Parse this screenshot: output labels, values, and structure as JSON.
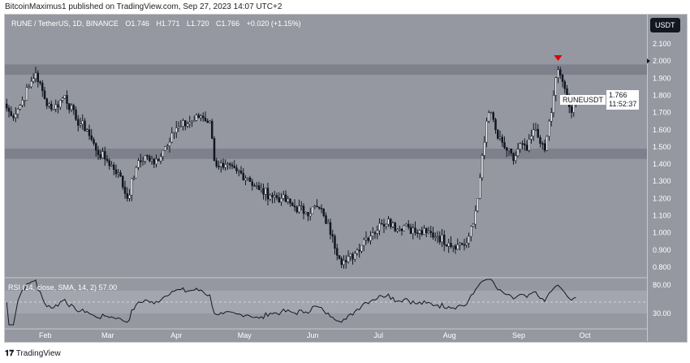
{
  "header": {
    "published": "BitcoinMaximus1 published on TradingView.com, Sep 27, 2023 14:07 UTC+2"
  },
  "legend": {
    "symbol": "RUNE / TetherUS, 1D, BINANCE",
    "open": "O1.746",
    "high": "H1.771",
    "low": "L1.720",
    "close": "C1.766",
    "change": "+0.020 (+1.15%)"
  },
  "price_axis": {
    "currency": "USDT",
    "ticks": [
      "2.100",
      "2.000",
      "1.900",
      "1.800",
      "1.700",
      "1.600",
      "1.500",
      "1.400",
      "1.300",
      "1.200",
      "1.100",
      "1.000",
      "0.900",
      "0.800"
    ],
    "symbol_label": "RUNEUSDT",
    "last_price": "1.766",
    "countdown": "11:52:37"
  },
  "time_axis": {
    "ticks": [
      "Feb",
      "Mar",
      "Apr",
      "May",
      "Jun",
      "Jul",
      "Aug",
      "Sep",
      "Oct"
    ]
  },
  "rsi": {
    "label": "RSI (14, close, SMA, 14, 2)",
    "value": "57.00",
    "ticks": [
      "80.00",
      "30.00"
    ]
  },
  "footer": {
    "brand": "TradingView"
  },
  "colors": {
    "background": "#9598a1",
    "up": "#ffffff",
    "down": "#131722",
    "marker": "#e00000",
    "zone": "#787b86"
  },
  "chart_data": {
    "type": "candlestick",
    "ylim": [
      0.75,
      2.2
    ],
    "zones": [
      [
        1.92,
        1.98
      ],
      [
        1.43,
        1.49
      ]
    ],
    "marker": {
      "date": "2023-09-19",
      "type": "down-triangle"
    },
    "closes": [
      [
        "2023-01-14",
        1.75
      ],
      [
        "2023-01-17",
        1.68
      ],
      [
        "2023-01-20",
        1.72
      ],
      [
        "2023-01-25",
        1.85
      ],
      [
        "2023-01-28",
        1.93
      ],
      [
        "2023-02-01",
        1.78
      ],
      [
        "2023-02-05",
        1.72
      ],
      [
        "2023-02-10",
        1.8
      ],
      [
        "2023-02-15",
        1.66
      ],
      [
        "2023-02-20",
        1.6
      ],
      [
        "2023-02-24",
        1.48
      ],
      [
        "2023-03-01",
        1.42
      ],
      [
        "2023-03-06",
        1.35
      ],
      [
        "2023-03-10",
        1.2
      ],
      [
        "2023-03-14",
        1.38
      ],
      [
        "2023-03-18",
        1.45
      ],
      [
        "2023-03-22",
        1.4
      ],
      [
        "2023-03-26",
        1.48
      ],
      [
        "2023-03-30",
        1.58
      ],
      [
        "2023-04-03",
        1.62
      ],
      [
        "2023-04-08",
        1.65
      ],
      [
        "2023-04-12",
        1.68
      ],
      [
        "2023-04-16",
        1.65
      ],
      [
        "2023-04-18",
        1.42
      ],
      [
        "2023-04-22",
        1.38
      ],
      [
        "2023-04-28",
        1.36
      ],
      [
        "2023-05-03",
        1.32
      ],
      [
        "2023-05-08",
        1.25
      ],
      [
        "2023-05-13",
        1.22
      ],
      [
        "2023-05-18",
        1.2
      ],
      [
        "2023-05-24",
        1.15
      ],
      [
        "2023-05-29",
        1.12
      ],
      [
        "2023-06-03",
        1.15
      ],
      [
        "2023-06-06",
        1.1
      ],
      [
        "2023-06-10",
        0.98
      ],
      [
        "2023-06-13",
        0.85
      ],
      [
        "2023-06-16",
        0.83
      ],
      [
        "2023-06-20",
        0.88
      ],
      [
        "2023-06-24",
        0.96
      ],
      [
        "2023-06-28",
        1.0
      ],
      [
        "2023-07-02",
        1.05
      ],
      [
        "2023-07-05",
        1.08
      ],
      [
        "2023-07-09",
        1.02
      ],
      [
        "2023-07-13",
        1.05
      ],
      [
        "2023-07-17",
        1.0
      ],
      [
        "2023-07-22",
        1.0
      ],
      [
        "2023-07-27",
        0.98
      ],
      [
        "2023-08-01",
        0.94
      ],
      [
        "2023-08-05",
        0.93
      ],
      [
        "2023-08-09",
        0.94
      ],
      [
        "2023-08-12",
        1.05
      ],
      [
        "2023-08-14",
        1.2
      ],
      [
        "2023-08-16",
        1.45
      ],
      [
        "2023-08-18",
        1.65
      ],
      [
        "2023-08-20",
        1.7
      ],
      [
        "2023-08-23",
        1.55
      ],
      [
        "2023-08-27",
        1.48
      ],
      [
        "2023-08-30",
        1.42
      ],
      [
        "2023-09-02",
        1.52
      ],
      [
        "2023-09-05",
        1.48
      ],
      [
        "2023-09-08",
        1.6
      ],
      [
        "2023-09-11",
        1.52
      ],
      [
        "2023-09-13",
        1.48
      ],
      [
        "2023-09-15",
        1.65
      ],
      [
        "2023-09-17",
        1.8
      ],
      [
        "2023-09-19",
        1.95
      ],
      [
        "2023-09-21",
        1.88
      ],
      [
        "2023-09-23",
        1.78
      ],
      [
        "2023-09-25",
        1.7
      ],
      [
        "2023-09-27",
        1.766
      ]
    ]
  }
}
